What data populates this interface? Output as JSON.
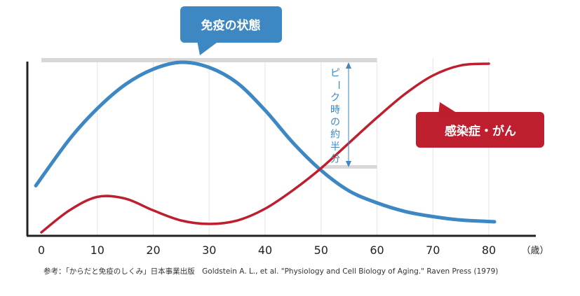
{
  "chart_data": {
    "type": "line",
    "x_ticks": [
      0,
      10,
      20,
      30,
      40,
      50,
      60,
      70,
      80
    ],
    "xlim": [
      0,
      80
    ],
    "unit": "（歳）",
    "grid": "vertical",
    "series": [
      {
        "name": "免疫の状態",
        "color": "#3d87c3",
        "points": [
          [
            -1,
            0.28
          ],
          [
            5,
            0.55
          ],
          [
            10,
            0.73
          ],
          [
            15,
            0.87
          ],
          [
            20,
            0.96
          ],
          [
            25,
            1.0
          ],
          [
            30,
            0.97
          ],
          [
            35,
            0.88
          ],
          [
            40,
            0.72
          ],
          [
            45,
            0.53
          ],
          [
            50,
            0.37
          ],
          [
            55,
            0.25
          ],
          [
            60,
            0.18
          ],
          [
            65,
            0.13
          ],
          [
            70,
            0.1
          ],
          [
            75,
            0.08
          ],
          [
            81,
            0.07
          ]
        ]
      },
      {
        "name": "感染症・がん",
        "color": "#be1e2d",
        "points": [
          [
            0,
            0.0
          ],
          [
            5,
            0.13
          ],
          [
            10,
            0.21
          ],
          [
            15,
            0.2
          ],
          [
            20,
            0.13
          ],
          [
            25,
            0.07
          ],
          [
            30,
            0.05
          ],
          [
            35,
            0.07
          ],
          [
            40,
            0.14
          ],
          [
            45,
            0.25
          ],
          [
            50,
            0.38
          ],
          [
            55,
            0.53
          ],
          [
            60,
            0.68
          ],
          [
            65,
            0.82
          ],
          [
            70,
            0.93
          ],
          [
            75,
            0.99
          ],
          [
            80,
            1.0
          ]
        ]
      }
    ],
    "annotation": "ピーク時の約半分",
    "callouts": {
      "immune": "免疫の状態",
      "disease": "感染症・がん"
    },
    "source": "参考：「からだと免疫のしくみ」日本事業出版　Goldstein A. L., et al. \"Physiology and Cell Biology of Aging.\" Raven Press (1979)",
    "colors": {
      "immune": "#3d87c3",
      "disease": "#be1e2d",
      "guide": "#d8d8d8",
      "grid": "#e6e6e6",
      "axis": "#222222"
    }
  }
}
